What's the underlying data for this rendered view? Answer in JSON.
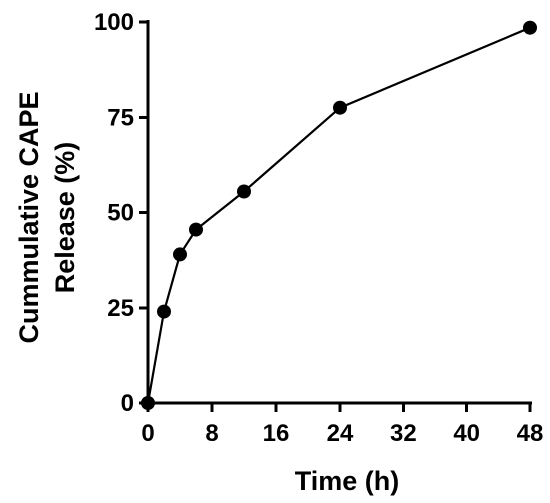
{
  "chart_data": {
    "type": "line",
    "title": "",
    "xlabel": "Time (h)",
    "ylabel_lines": [
      "Cummulative CAPE",
      "Release (%)"
    ],
    "x_ticks": [
      "0",
      "8",
      "16",
      "24",
      "32",
      "40",
      "48"
    ],
    "y_ticks": [
      "0",
      "25",
      "50",
      "75",
      "100"
    ],
    "xlim": [
      0,
      48
    ],
    "ylim": [
      0,
      100
    ],
    "x_scale": "segmented",
    "x_scale_note": "tick labels 0,8,16,24 then 32,40,48; spacing below 24 is wider per hour",
    "grid": false,
    "legend": "none",
    "series": [
      {
        "x": [
          0,
          2,
          4,
          6,
          12,
          24,
          48
        ],
        "y": [
          0,
          24,
          39,
          45.5,
          55.5,
          77.5,
          98.5
        ],
        "color": "#000000",
        "marker": "circle"
      }
    ]
  }
}
